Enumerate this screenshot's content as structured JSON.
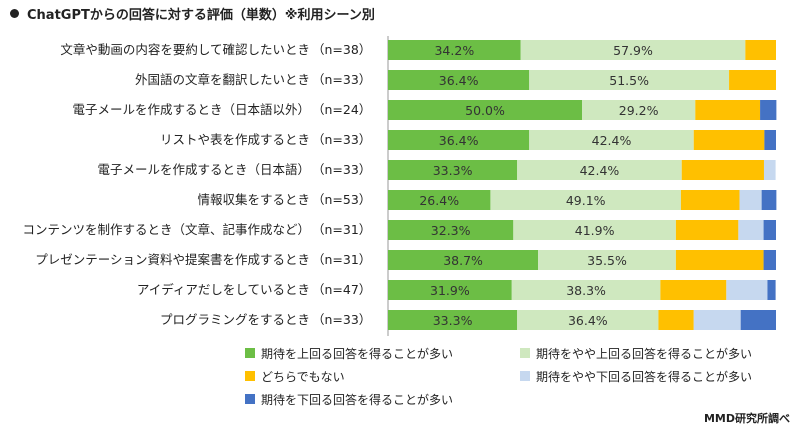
{
  "title": "ChatGPTからの回答に対する評価（単数）※利用シーン別",
  "credit": "MMD研究所調べ",
  "colors": [
    "#6cbe45",
    "#cfe8bf",
    "#ffc000",
    "#c6d8ef",
    "#4472c4"
  ],
  "chart_data": {
    "type": "bar",
    "stacked": true,
    "orientation": "horizontal",
    "xlim": [
      0,
      100
    ],
    "unit": "%",
    "categories": [
      "文章や動画の内容を要約して確認したいとき（n=38）",
      "外国語の文章を翻訳したいとき（n=33）",
      "電子メールを作成するとき（日本語以外）（n=24）",
      "リストや表を作成するとき（n=33）",
      "電子メールを作成するとき（日本語）（n=33）",
      "情報収集をするとき（n=53）",
      "コンテンツを制作するとき（文章、記事作成など）（n=31）",
      "プレゼンテーション資料や提案書を作成するとき（n=31）",
      "アイディアだしをしているとき（n=47）",
      "プログラミングをするとき（n=33）"
    ],
    "series": [
      {
        "name": "期待を上回る回答を得ることが多い",
        "values": [
          34.2,
          36.4,
          50.0,
          36.4,
          33.3,
          26.4,
          32.3,
          38.7,
          31.9,
          33.3
        ]
      },
      {
        "name": "期待をやや上回る回答を得ることが多い",
        "values": [
          57.9,
          51.5,
          29.2,
          42.4,
          42.4,
          49.1,
          41.9,
          35.5,
          38.3,
          36.4
        ]
      },
      {
        "name": "どちらでもない",
        "values": [
          7.9,
          12.1,
          16.7,
          18.2,
          21.2,
          15.1,
          16.1,
          22.6,
          17.0,
          9.1
        ]
      },
      {
        "name": "期待をやや下回る回答を得ることが多い",
        "values": [
          0,
          0,
          0,
          0,
          3.0,
          5.7,
          6.5,
          0,
          10.6,
          12.1
        ]
      },
      {
        "name": "期待を下回る回答を得ることが多い",
        "values": [
          0,
          0,
          4.2,
          3.0,
          0,
          3.8,
          3.2,
          3.2,
          2.1,
          9.1
        ]
      }
    ],
    "labeled_series": [
      0,
      1
    ]
  }
}
